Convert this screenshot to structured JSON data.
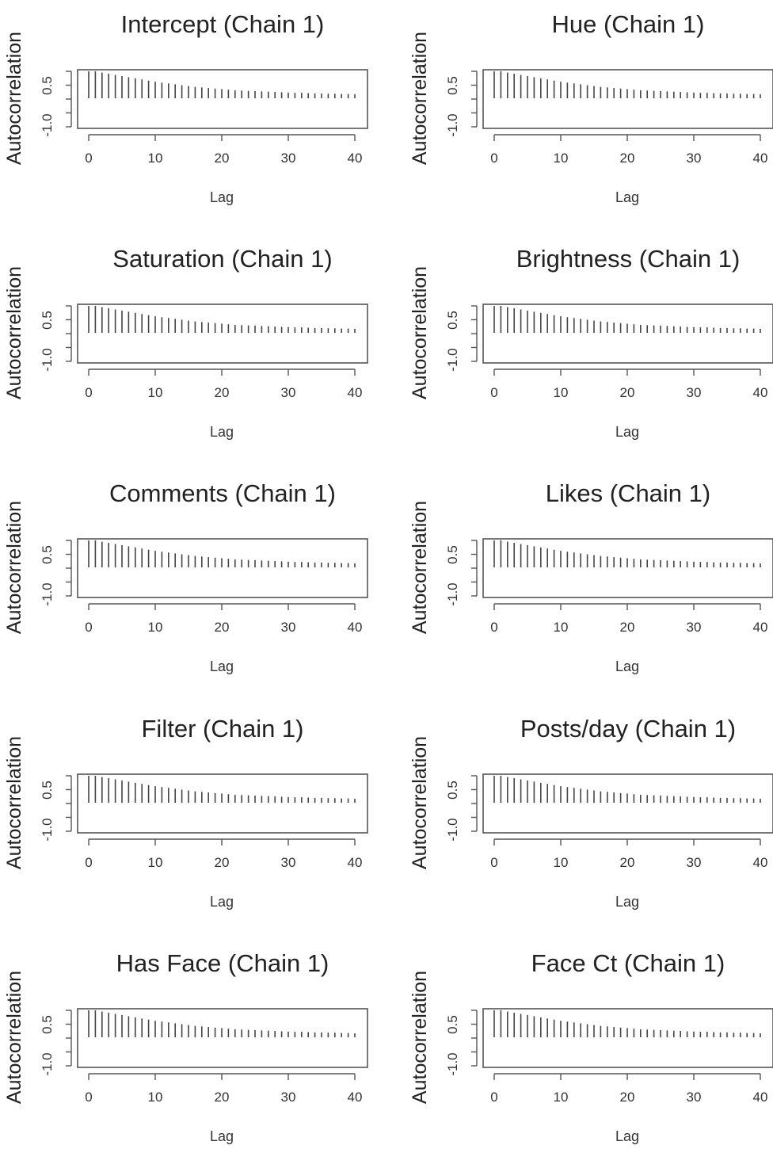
{
  "chart_data": [
    {
      "type": "bar",
      "title": "Intercept (Chain 1)",
      "xlabel": "Lag",
      "ylabel": "Autocorrelation",
      "xlim": [
        0,
        40
      ],
      "ylim": [
        -1,
        1
      ],
      "xticks": [
        "0",
        "10",
        "20",
        "30",
        "40"
      ],
      "yticks": [
        "-1.0",
        "0.5"
      ],
      "x": [
        0,
        1,
        2,
        3,
        4,
        5,
        6,
        7,
        8,
        9,
        10,
        11,
        12,
        13,
        14,
        15,
        16,
        17,
        18,
        19,
        20,
        21,
        22,
        23,
        24,
        25,
        26,
        27,
        28,
        29,
        30,
        31,
        32,
        33,
        34,
        35,
        36,
        37,
        38,
        39,
        40
      ],
      "values": [
        1.0,
        0.95,
        0.9,
        0.86,
        0.82,
        0.78,
        0.74,
        0.7,
        0.66,
        0.62,
        0.58,
        0.55,
        0.52,
        0.49,
        0.46,
        0.43,
        0.4,
        0.38,
        0.36,
        0.34,
        0.32,
        0.3,
        0.28,
        0.27,
        0.26,
        0.25,
        0.24,
        0.23,
        0.22,
        0.21,
        0.2,
        0.19,
        0.19,
        0.18,
        0.17,
        0.17,
        0.16,
        0.16,
        0.15,
        0.15,
        0.14
      ]
    },
    {
      "type": "bar",
      "title": "Hue (Chain 1)",
      "xlabel": "Lag",
      "ylabel": "Autocorrelation",
      "xlim": [
        0,
        40
      ],
      "ylim": [
        -1,
        1
      ],
      "xticks": [
        "0",
        "10",
        "20",
        "30",
        "40"
      ],
      "yticks": [
        "-1.0",
        "0.5"
      ],
      "x": [
        0,
        1,
        2,
        3,
        4,
        5,
        6,
        7,
        8,
        9,
        10,
        11,
        12,
        13,
        14,
        15,
        16,
        17,
        18,
        19,
        20,
        21,
        22,
        23,
        24,
        25,
        26,
        27,
        28,
        29,
        30,
        31,
        32,
        33,
        34,
        35,
        36,
        37,
        38,
        39,
        40
      ],
      "values": [
        1.0,
        0.95,
        0.9,
        0.86,
        0.82,
        0.78,
        0.74,
        0.7,
        0.66,
        0.62,
        0.58,
        0.55,
        0.52,
        0.49,
        0.46,
        0.43,
        0.4,
        0.38,
        0.36,
        0.34,
        0.32,
        0.3,
        0.28,
        0.27,
        0.26,
        0.25,
        0.24,
        0.23,
        0.22,
        0.21,
        0.2,
        0.19,
        0.19,
        0.18,
        0.17,
        0.17,
        0.16,
        0.16,
        0.15,
        0.15,
        0.14
      ]
    },
    {
      "type": "bar",
      "title": "Saturation (Chain 1)",
      "xlabel": "Lag",
      "ylabel": "Autocorrelation",
      "xlim": [
        0,
        40
      ],
      "ylim": [
        -1,
        1
      ],
      "xticks": [
        "0",
        "10",
        "20",
        "30",
        "40"
      ],
      "yticks": [
        "-1.0",
        "0.5"
      ],
      "x": [
        0,
        1,
        2,
        3,
        4,
        5,
        6,
        7,
        8,
        9,
        10,
        11,
        12,
        13,
        14,
        15,
        16,
        17,
        18,
        19,
        20,
        21,
        22,
        23,
        24,
        25,
        26,
        27,
        28,
        29,
        30,
        31,
        32,
        33,
        34,
        35,
        36,
        37,
        38,
        39,
        40
      ],
      "values": [
        1.0,
        0.95,
        0.9,
        0.86,
        0.82,
        0.78,
        0.74,
        0.7,
        0.66,
        0.62,
        0.58,
        0.55,
        0.52,
        0.49,
        0.46,
        0.43,
        0.4,
        0.38,
        0.36,
        0.34,
        0.32,
        0.3,
        0.28,
        0.27,
        0.26,
        0.25,
        0.24,
        0.23,
        0.22,
        0.21,
        0.2,
        0.19,
        0.19,
        0.18,
        0.17,
        0.17,
        0.16,
        0.16,
        0.15,
        0.15,
        0.14
      ]
    },
    {
      "type": "bar",
      "title": "Brightness (Chain 1)",
      "xlabel": "Lag",
      "ylabel": "Autocorrelation",
      "xlim": [
        0,
        40
      ],
      "ylim": [
        -1,
        1
      ],
      "xticks": [
        "0",
        "10",
        "20",
        "30",
        "40"
      ],
      "yticks": [
        "-1.0",
        "0.5"
      ],
      "x": [
        0,
        1,
        2,
        3,
        4,
        5,
        6,
        7,
        8,
        9,
        10,
        11,
        12,
        13,
        14,
        15,
        16,
        17,
        18,
        19,
        20,
        21,
        22,
        23,
        24,
        25,
        26,
        27,
        28,
        29,
        30,
        31,
        32,
        33,
        34,
        35,
        36,
        37,
        38,
        39,
        40
      ],
      "values": [
        1.0,
        0.95,
        0.9,
        0.86,
        0.82,
        0.78,
        0.74,
        0.7,
        0.66,
        0.62,
        0.58,
        0.55,
        0.52,
        0.49,
        0.46,
        0.43,
        0.4,
        0.38,
        0.36,
        0.34,
        0.32,
        0.3,
        0.28,
        0.27,
        0.26,
        0.25,
        0.24,
        0.23,
        0.22,
        0.21,
        0.2,
        0.19,
        0.19,
        0.18,
        0.17,
        0.17,
        0.16,
        0.16,
        0.15,
        0.15,
        0.14
      ]
    },
    {
      "type": "bar",
      "title": "Comments (Chain 1)",
      "xlabel": "Lag",
      "ylabel": "Autocorrelation",
      "xlim": [
        0,
        40
      ],
      "ylim": [
        -1,
        1
      ],
      "xticks": [
        "0",
        "10",
        "20",
        "30",
        "40"
      ],
      "yticks": [
        "-1.0",
        "0.5"
      ],
      "x": [
        0,
        1,
        2,
        3,
        4,
        5,
        6,
        7,
        8,
        9,
        10,
        11,
        12,
        13,
        14,
        15,
        16,
        17,
        18,
        19,
        20,
        21,
        22,
        23,
        24,
        25,
        26,
        27,
        28,
        29,
        30,
        31,
        32,
        33,
        34,
        35,
        36,
        37,
        38,
        39,
        40
      ],
      "values": [
        1.0,
        0.95,
        0.9,
        0.86,
        0.82,
        0.78,
        0.74,
        0.7,
        0.66,
        0.62,
        0.58,
        0.55,
        0.52,
        0.49,
        0.46,
        0.43,
        0.4,
        0.38,
        0.36,
        0.34,
        0.32,
        0.3,
        0.28,
        0.27,
        0.26,
        0.25,
        0.24,
        0.23,
        0.22,
        0.21,
        0.2,
        0.19,
        0.19,
        0.18,
        0.17,
        0.17,
        0.16,
        0.16,
        0.15,
        0.15,
        0.14
      ]
    },
    {
      "type": "bar",
      "title": "Likes (Chain 1)",
      "xlabel": "Lag",
      "ylabel": "Autocorrelation",
      "xlim": [
        0,
        40
      ],
      "ylim": [
        -1,
        1
      ],
      "xticks": [
        "0",
        "10",
        "20",
        "30",
        "40"
      ],
      "yticks": [
        "-1.0",
        "0.5"
      ],
      "x": [
        0,
        1,
        2,
        3,
        4,
        5,
        6,
        7,
        8,
        9,
        10,
        11,
        12,
        13,
        14,
        15,
        16,
        17,
        18,
        19,
        20,
        21,
        22,
        23,
        24,
        25,
        26,
        27,
        28,
        29,
        30,
        31,
        32,
        33,
        34,
        35,
        36,
        37,
        38,
        39,
        40
      ],
      "values": [
        1.0,
        0.95,
        0.9,
        0.86,
        0.82,
        0.78,
        0.74,
        0.7,
        0.66,
        0.62,
        0.58,
        0.55,
        0.52,
        0.49,
        0.46,
        0.43,
        0.4,
        0.38,
        0.36,
        0.34,
        0.32,
        0.3,
        0.28,
        0.27,
        0.26,
        0.25,
        0.24,
        0.23,
        0.22,
        0.21,
        0.2,
        0.19,
        0.19,
        0.18,
        0.17,
        0.17,
        0.16,
        0.16,
        0.15,
        0.15,
        0.14
      ]
    },
    {
      "type": "bar",
      "title": "Filter (Chain 1)",
      "xlabel": "Lag",
      "ylabel": "Autocorrelation",
      "xlim": [
        0,
        40
      ],
      "ylim": [
        -1,
        1
      ],
      "xticks": [
        "0",
        "10",
        "20",
        "30",
        "40"
      ],
      "yticks": [
        "-1.0",
        "0.5"
      ],
      "x": [
        0,
        1,
        2,
        3,
        4,
        5,
        6,
        7,
        8,
        9,
        10,
        11,
        12,
        13,
        14,
        15,
        16,
        17,
        18,
        19,
        20,
        21,
        22,
        23,
        24,
        25,
        26,
        27,
        28,
        29,
        30,
        31,
        32,
        33,
        34,
        35,
        36,
        37,
        38,
        39,
        40
      ],
      "values": [
        1.0,
        0.95,
        0.9,
        0.86,
        0.82,
        0.78,
        0.74,
        0.7,
        0.66,
        0.62,
        0.58,
        0.55,
        0.52,
        0.49,
        0.46,
        0.43,
        0.4,
        0.38,
        0.36,
        0.34,
        0.32,
        0.3,
        0.28,
        0.27,
        0.26,
        0.25,
        0.24,
        0.23,
        0.22,
        0.21,
        0.2,
        0.19,
        0.19,
        0.18,
        0.17,
        0.17,
        0.16,
        0.16,
        0.15,
        0.15,
        0.14
      ]
    },
    {
      "type": "bar",
      "title": "Posts/day (Chain 1)",
      "xlabel": "Lag",
      "ylabel": "Autocorrelation",
      "xlim": [
        0,
        40
      ],
      "ylim": [
        -1,
        1
      ],
      "xticks": [
        "0",
        "10",
        "20",
        "30",
        "40"
      ],
      "yticks": [
        "-1.0",
        "0.5"
      ],
      "x": [
        0,
        1,
        2,
        3,
        4,
        5,
        6,
        7,
        8,
        9,
        10,
        11,
        12,
        13,
        14,
        15,
        16,
        17,
        18,
        19,
        20,
        21,
        22,
        23,
        24,
        25,
        26,
        27,
        28,
        29,
        30,
        31,
        32,
        33,
        34,
        35,
        36,
        37,
        38,
        39,
        40
      ],
      "values": [
        1.0,
        0.95,
        0.9,
        0.86,
        0.82,
        0.78,
        0.74,
        0.7,
        0.66,
        0.62,
        0.58,
        0.55,
        0.52,
        0.49,
        0.46,
        0.43,
        0.4,
        0.38,
        0.36,
        0.34,
        0.32,
        0.3,
        0.28,
        0.27,
        0.26,
        0.25,
        0.24,
        0.23,
        0.22,
        0.21,
        0.2,
        0.19,
        0.19,
        0.18,
        0.17,
        0.17,
        0.16,
        0.16,
        0.15,
        0.15,
        0.14
      ]
    },
    {
      "type": "bar",
      "title": "Has Face (Chain 1)",
      "xlabel": "Lag",
      "ylabel": "Autocorrelation",
      "xlim": [
        0,
        40
      ],
      "ylim": [
        -1,
        1
      ],
      "xticks": [
        "0",
        "10",
        "20",
        "30",
        "40"
      ],
      "yticks": [
        "-1.0",
        "0.5"
      ],
      "x": [
        0,
        1,
        2,
        3,
        4,
        5,
        6,
        7,
        8,
        9,
        10,
        11,
        12,
        13,
        14,
        15,
        16,
        17,
        18,
        19,
        20,
        21,
        22,
        23,
        24,
        25,
        26,
        27,
        28,
        29,
        30,
        31,
        32,
        33,
        34,
        35,
        36,
        37,
        38,
        39,
        40
      ],
      "values": [
        1.0,
        0.95,
        0.9,
        0.86,
        0.82,
        0.78,
        0.74,
        0.7,
        0.66,
        0.62,
        0.58,
        0.55,
        0.52,
        0.49,
        0.46,
        0.43,
        0.4,
        0.38,
        0.36,
        0.34,
        0.32,
        0.3,
        0.28,
        0.27,
        0.26,
        0.25,
        0.24,
        0.23,
        0.22,
        0.21,
        0.2,
        0.19,
        0.19,
        0.18,
        0.17,
        0.17,
        0.16,
        0.16,
        0.15,
        0.15,
        0.14
      ]
    },
    {
      "type": "bar",
      "title": "Face Ct (Chain 1)",
      "xlabel": "Lag",
      "ylabel": "Autocorrelation",
      "xlim": [
        0,
        40
      ],
      "ylim": [
        -1,
        1
      ],
      "xticks": [
        "0",
        "10",
        "20",
        "30",
        "40"
      ],
      "yticks": [
        "-1.0",
        "0.5"
      ],
      "x": [
        0,
        1,
        2,
        3,
        4,
        5,
        6,
        7,
        8,
        9,
        10,
        11,
        12,
        13,
        14,
        15,
        16,
        17,
        18,
        19,
        20,
        21,
        22,
        23,
        24,
        25,
        26,
        27,
        28,
        29,
        30,
        31,
        32,
        33,
        34,
        35,
        36,
        37,
        38,
        39,
        40
      ],
      "values": [
        1.0,
        0.95,
        0.9,
        0.86,
        0.82,
        0.78,
        0.74,
        0.7,
        0.66,
        0.62,
        0.58,
        0.55,
        0.52,
        0.49,
        0.46,
        0.43,
        0.4,
        0.38,
        0.36,
        0.34,
        0.32,
        0.3,
        0.28,
        0.27,
        0.26,
        0.25,
        0.24,
        0.23,
        0.22,
        0.21,
        0.2,
        0.19,
        0.19,
        0.18,
        0.17,
        0.17,
        0.16,
        0.16,
        0.15,
        0.15,
        0.14
      ]
    }
  ]
}
